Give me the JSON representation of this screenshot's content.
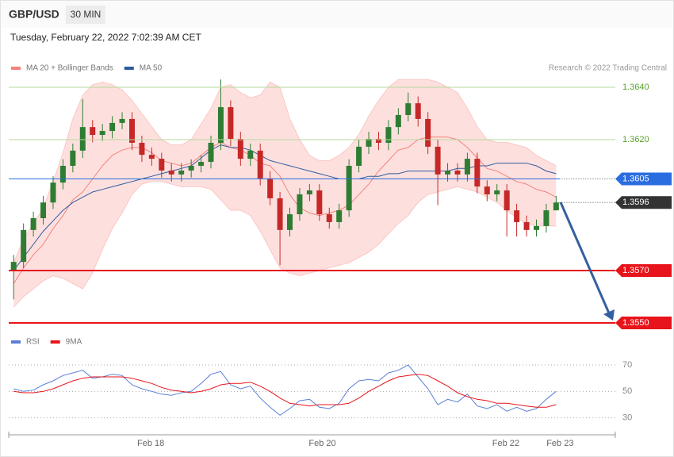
{
  "header": {
    "symbol": "GBP/USD",
    "interval": "30 MIN",
    "timestamp": "Tuesday, February 22, 2022 7:02:39 AM CET"
  },
  "chart_data": [
    {
      "type": "candlestick",
      "credit": "Research © 2022 Trading Central",
      "xlim": [
        -0.5,
        61
      ],
      "ylim": [
        1.3548,
        1.3645
      ],
      "up_color": "#2e7d32",
      "down_color": "#c62828",
      "open": [
        1.357,
        1.35733,
        1.35855,
        1.359,
        1.3596,
        1.36036,
        1.361,
        1.36158,
        1.36248,
        1.36218,
        1.36233,
        1.36264,
        1.36279,
        1.36188,
        1.36142,
        1.36127,
        1.36082,
        1.36067,
        1.36082,
        1.361,
        1.36115,
        1.36188,
        1.36324,
        1.36203,
        1.36127,
        1.36158,
        1.36052,
        1.35976,
        1.35855,
        1.35915,
        1.35991,
        1.36006,
        1.35915,
        1.35885,
        1.3593,
        1.361,
        1.36173,
        1.36203,
        1.36188,
        1.36248,
        1.36294,
        1.36339,
        1.36279,
        1.36173,
        1.36067,
        1.36082,
        1.36067,
        1.36127,
        1.36021,
        1.35991,
        1.36006,
        1.3593,
        1.35885,
        1.35855,
        1.3587,
        1.3593
      ],
      "high": [
        1.3576,
        1.3588,
        1.35925,
        1.35985,
        1.3606,
        1.36125,
        1.36185,
        1.36355,
        1.36275,
        1.3626,
        1.3629,
        1.36305,
        1.36305,
        1.36215,
        1.3617,
        1.3615,
        1.3611,
        1.3611,
        1.36125,
        1.3614,
        1.36215,
        1.3643,
        1.3635,
        1.3623,
        1.36185,
        1.36185,
        1.3608,
        1.36,
        1.3594,
        1.36015,
        1.3603,
        1.3603,
        1.3594,
        1.35955,
        1.36125,
        1.362,
        1.3623,
        1.3623,
        1.36275,
        1.3632,
        1.3638,
        1.36365,
        1.36305,
        1.362,
        1.3611,
        1.3611,
        1.3615,
        1.3615,
        1.36045,
        1.3603,
        1.3603,
        1.35955,
        1.3591,
        1.35895,
        1.35955,
        1.35985
      ],
      "low": [
        1.3559,
        1.3571,
        1.3583,
        1.35875,
        1.35935,
        1.3601,
        1.36075,
        1.3613,
        1.3619,
        1.36195,
        1.36205,
        1.3624,
        1.3616,
        1.36115,
        1.361,
        1.36055,
        1.3604,
        1.3604,
        1.36055,
        1.36075,
        1.3609,
        1.3616,
        1.36175,
        1.361,
        1.361,
        1.36025,
        1.3595,
        1.3572,
        1.3583,
        1.3589,
        1.35965,
        1.3589,
        1.3586,
        1.3586,
        1.35905,
        1.36075,
        1.36145,
        1.3616,
        1.3616,
        1.3622,
        1.3627,
        1.3625,
        1.36145,
        1.3595,
        1.3604,
        1.3604,
        1.3604,
        1.35995,
        1.35965,
        1.35965,
        1.3583,
        1.3583,
        1.3583,
        1.3583,
        1.35845,
        1.3593
      ],
      "close": [
        1.35733,
        1.35855,
        1.359,
        1.3596,
        1.36036,
        1.361,
        1.36158,
        1.36248,
        1.36218,
        1.36233,
        1.36264,
        1.36279,
        1.36188,
        1.36142,
        1.36127,
        1.36082,
        1.36067,
        1.36082,
        1.361,
        1.36115,
        1.36188,
        1.36324,
        1.36203,
        1.36127,
        1.36158,
        1.36052,
        1.35976,
        1.35855,
        1.35915,
        1.35991,
        1.36006,
        1.35915,
        1.35885,
        1.3593,
        1.361,
        1.36173,
        1.36203,
        1.36188,
        1.36248,
        1.36294,
        1.36339,
        1.36279,
        1.36173,
        1.36067,
        1.36082,
        1.36067,
        1.36127,
        1.36021,
        1.35991,
        1.36006,
        1.3593,
        1.35885,
        1.35855,
        1.3587,
        1.3593,
        1.3596
      ],
      "series": [
        {
          "name": "MA 20 + Bollinger Bands",
          "color": "#f4827c",
          "band_color": "#fde0de",
          "values": [
            1.3565,
            1.3571,
            1.3576,
            1.358,
            1.3586,
            1.3591,
            1.3597,
            1.36,
            1.3605,
            1.361,
            1.3614,
            1.3616,
            1.3617,
            1.3617,
            1.3615,
            1.3612,
            1.3611,
            1.361,
            1.3611,
            1.3614,
            1.3617,
            1.3619,
            1.3617,
            1.3616,
            1.3614,
            1.3611,
            1.361,
            1.3606,
            1.3599,
            1.3594,
            1.3592,
            1.3591,
            1.3592,
            1.3593,
            1.3595,
            1.3599,
            1.3603,
            1.3608,
            1.3612,
            1.3616,
            1.3617,
            1.362,
            1.3621,
            1.3621,
            1.3621,
            1.362,
            1.3617,
            1.3613,
            1.3609,
            1.3608,
            1.3606,
            1.3604,
            1.3603,
            1.3601,
            1.36,
            1.3598
          ],
          "upper": [
            1.3573,
            1.3582,
            1.3588,
            1.3594,
            1.3604,
            1.3615,
            1.3628,
            1.3637,
            1.3641,
            1.3642,
            1.3641,
            1.3639,
            1.3635,
            1.363,
            1.3625,
            1.362,
            1.3618,
            1.3618,
            1.362,
            1.3626,
            1.3632,
            1.364,
            1.3641,
            1.3638,
            1.3636,
            1.3637,
            1.3642,
            1.364,
            1.3628,
            1.362,
            1.3614,
            1.3612,
            1.3612,
            1.3614,
            1.3617,
            1.3622,
            1.3629,
            1.3635,
            1.364,
            1.3643,
            1.3643,
            1.3643,
            1.3643,
            1.3642,
            1.364,
            1.3638,
            1.3632,
            1.3625,
            1.362,
            1.3619,
            1.3619,
            1.3618,
            1.3617,
            1.3614,
            1.3612,
            1.361
          ],
          "lower": [
            1.3556,
            1.356,
            1.3563,
            1.3566,
            1.3568,
            1.3567,
            1.3565,
            1.3563,
            1.3569,
            1.3578,
            1.3586,
            1.3592,
            1.3599,
            1.3603,
            1.3604,
            1.3604,
            1.3603,
            1.3602,
            1.3602,
            1.3602,
            1.3601,
            1.3597,
            1.3593,
            1.3593,
            1.3591,
            1.3585,
            1.3578,
            1.3571,
            1.3569,
            1.3568,
            1.3569,
            1.357,
            1.3571,
            1.3572,
            1.3573,
            1.3575,
            1.3577,
            1.358,
            1.3584,
            1.3588,
            1.3591,
            1.3596,
            1.3599,
            1.36,
            1.3601,
            1.3602,
            1.3601,
            1.36,
            1.3598,
            1.3596,
            1.3593,
            1.359,
            1.3588,
            1.3587,
            1.3587,
            1.3587
          ]
        },
        {
          "name": "MA 50",
          "color": "#2f5b9f",
          "values": [
            1.357,
            1.3575,
            1.358,
            1.3585,
            1.3589,
            1.3593,
            1.3596,
            1.3598,
            1.36,
            1.3601,
            1.3602,
            1.3603,
            1.3604,
            1.3605,
            1.3606,
            1.3607,
            1.3608,
            1.3609,
            1.361,
            1.3613,
            1.3616,
            1.3618,
            1.3617,
            1.3617,
            1.3616,
            1.3614,
            1.3612,
            1.3611,
            1.361,
            1.3609,
            1.3608,
            1.3607,
            1.3606,
            1.3605,
            1.3605,
            1.3605,
            1.3606,
            1.3606,
            1.3607,
            1.3607,
            1.3608,
            1.3608,
            1.3608,
            1.3608,
            1.3608,
            1.3609,
            1.3609,
            1.361,
            1.361,
            1.3611,
            1.3611,
            1.3611,
            1.3611,
            1.361,
            1.3608,
            1.3607
          ]
        }
      ],
      "levels": [
        {
          "value": 1.364,
          "label": "1.3640",
          "color": "#5aa02c",
          "line_color": "#b5d99c",
          "style": "plain",
          "line": "solid"
        },
        {
          "value": 1.362,
          "label": "1.3620",
          "color": "#5aa02c",
          "line_color": "#b5d99c",
          "style": "plain",
          "line": "solid"
        },
        {
          "value": 1.3605,
          "label": "1.3605",
          "color": "#2a6de0",
          "line_color": "#2a6de0",
          "style": "tag",
          "line": "solid"
        },
        {
          "value": 1.3596,
          "label": "1.3596",
          "color": "#333333",
          "line_color": "#555555",
          "style": "tag",
          "line": "dotted"
        },
        {
          "value": 1.357,
          "label": "1.3570",
          "color": "#e8141b",
          "line_color": "#e8141b",
          "style": "tag",
          "line": "thick"
        },
        {
          "value": 1.355,
          "label": "1.3550",
          "color": "#e8141b",
          "line_color": "#e8141b",
          "style": "tag",
          "line": "thick"
        }
      ]
    },
    {
      "type": "line",
      "xlim": [
        -0.5,
        61
      ],
      "ylim": [
        25,
        79
      ],
      "yticks": [
        30,
        50,
        70
      ],
      "xticks": [
        {
          "value": 13.9,
          "label": "Feb 18"
        },
        {
          "value": 31.3,
          "label": "Feb 20"
        },
        {
          "value": 49.9,
          "label": "Feb 22"
        },
        {
          "value": 55.4,
          "label": "Feb 23"
        }
      ],
      "series": [
        {
          "name": "RSI",
          "color": "#5b7fd6",
          "values": [
            52,
            50,
            51,
            55,
            58,
            62,
            64,
            66,
            60,
            61,
            63,
            62,
            55,
            52,
            50,
            48,
            47,
            49,
            50,
            56,
            63,
            65,
            55,
            52,
            54,
            45,
            38,
            32,
            37,
            43,
            44,
            38,
            37,
            41,
            52,
            58,
            59,
            58,
            64,
            66,
            70,
            61,
            52,
            40,
            44,
            42,
            48,
            39,
            37,
            40,
            35,
            38,
            35,
            37,
            44,
            50
          ]
        },
        {
          "name": "9MA",
          "color": "#e8141b",
          "values": [
            50,
            49,
            49,
            50,
            52,
            55,
            58,
            60,
            61,
            61,
            61,
            61,
            60,
            58,
            56,
            53,
            51,
            50,
            49,
            50,
            52,
            55,
            56,
            56,
            57,
            54,
            50,
            45,
            41,
            40,
            39,
            40,
            40,
            40,
            41,
            45,
            50,
            54,
            58,
            61,
            62,
            63,
            62,
            58,
            54,
            49,
            46,
            44,
            43,
            41,
            41,
            40,
            39,
            38,
            38,
            40
          ]
        }
      ]
    }
  ]
}
